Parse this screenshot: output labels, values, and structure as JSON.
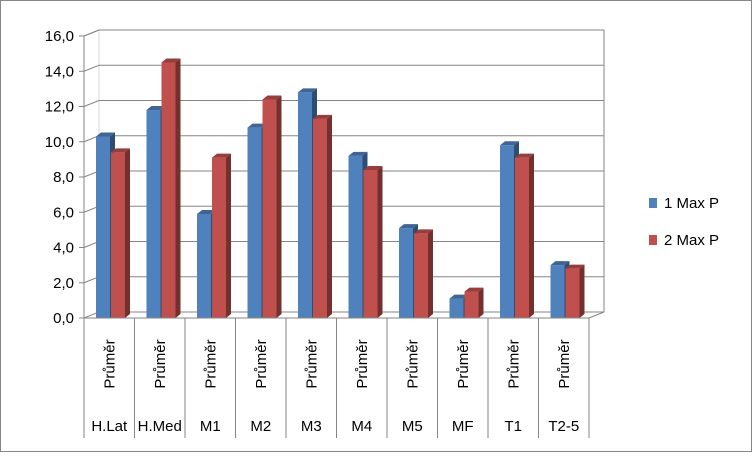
{
  "chart_data": {
    "type": "bar",
    "title": "",
    "xlabel": "",
    "ylabel": "",
    "ylim": [
      0,
      16
    ],
    "y_ticks": [
      "0,0",
      "2,0",
      "4,0",
      "6,0",
      "8,0",
      "10,0",
      "12,0",
      "14,0",
      "16,0"
    ],
    "grid": true,
    "legend_position": "right",
    "categories": [
      "H.Lat",
      "H.Med",
      "M1",
      "M2",
      "M3",
      "M4",
      "M5",
      "MF",
      "T1",
      "T2-5"
    ],
    "sub_category_label": "Průměr",
    "series": [
      {
        "name": "1 Max P",
        "color": "#4F81BD",
        "values": [
          10.3,
          11.8,
          5.9,
          10.8,
          12.8,
          9.2,
          5.1,
          1.1,
          9.8,
          3.0
        ]
      },
      {
        "name": "2 Max P",
        "color": "#C0504D",
        "values": [
          9.4,
          14.5,
          9.1,
          12.4,
          11.3,
          8.4,
          4.8,
          1.5,
          9.1,
          2.8
        ]
      }
    ]
  }
}
